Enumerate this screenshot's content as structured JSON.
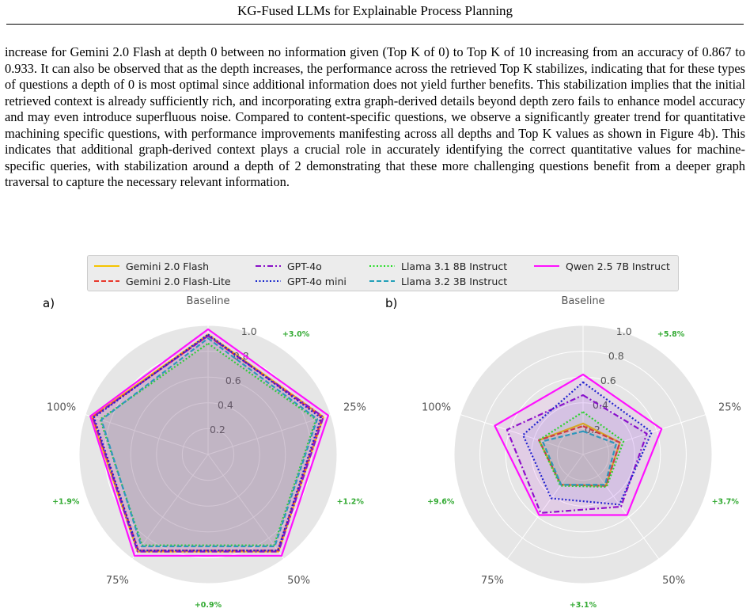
{
  "header": {
    "title": "KG-Fused LLMs for Explainable Process Planning"
  },
  "paragraph": "increase for Gemini 2.0 Flash at depth 0 between no information given (Top K of 0) to Top K of 10 increasing from an accuracy of 0.867 to 0.933. It can also be observed that as the depth increases, the performance across the retrieved Top K stabilizes, indicating that for these types of questions a depth of 0 is most optimal since additional information does not yield further benefits. This stabilization implies that the initial retrieved context is already sufficiently rich, and incorporating extra graph-derived details beyond depth zero fails to enhance model accuracy and may even introduce superfluous noise. Compared to content-specific questions, we observe a significantly greater trend for quantitative machining specific questions, with performance improvements manifesting across all depths and Top K values as shown in Figure 4b). This indicates that additional graph-derived context plays a crucial role in accurately identifying the correct quantitative values for machine-specific queries, with stabilization around a depth of 2 demonstrating that these more challenging questions benefit from a deeper graph traversal to capture the necessary relevant information.",
  "legend": {
    "items": [
      {
        "label": "Gemini 2.0 Flash",
        "color": "#f5c400",
        "dash": "solid"
      },
      {
        "label": "Gemini 2.0 Flash-Lite",
        "color": "#e8382c",
        "dash": "dashed"
      },
      {
        "label": "GPT-4o",
        "color": "#8a10c8",
        "dash": "dashdot"
      },
      {
        "label": "GPT-4o mini",
        "color": "#1424cc",
        "dash": "dotted"
      },
      {
        "label": "Llama 3.1 8B Instruct",
        "color": "#22dd22",
        "dash": "dotted"
      },
      {
        "label": "Llama 3.2 3B Instruct",
        "color": "#22a0b8",
        "dash": "dashed"
      },
      {
        "label": "Qwen 2.5 7B Instruct",
        "color": "#ff10ff",
        "dash": "solid"
      }
    ]
  },
  "chart_data": [
    {
      "type": "radar",
      "panel_label": "a)",
      "axes": [
        "Baseline",
        "25%",
        "50%",
        "75%",
        "100%"
      ],
      "rlim": [
        0,
        1.0
      ],
      "rticks": [
        "0.2",
        "0.4",
        "0.6",
        "0.8",
        "1.0"
      ],
      "improvement_labels": [
        "+3.0%",
        "+1.2%",
        "+0.9%",
        "+1.9%"
      ],
      "improvement_color": "#33aa33",
      "series": [
        {
          "name": "Gemini 2.0 Flash",
          "values": [
            0.93,
            0.94,
            0.93,
            0.93,
            0.95
          ]
        },
        {
          "name": "Gemini 2.0 Flash-Lite",
          "values": [
            0.92,
            0.93,
            0.92,
            0.92,
            0.94
          ]
        },
        {
          "name": "GPT-4o",
          "values": [
            0.92,
            0.94,
            0.93,
            0.93,
            0.94
          ]
        },
        {
          "name": "GPT-4o mini",
          "values": [
            0.93,
            0.92,
            0.92,
            0.92,
            0.93
          ]
        },
        {
          "name": "Llama 3.1 8B Instruct",
          "values": [
            0.86,
            0.88,
            0.87,
            0.87,
            0.88
          ]
        },
        {
          "name": "Llama 3.2 3B Instruct",
          "values": [
            0.9,
            0.89,
            0.88,
            0.88,
            0.87
          ]
        },
        {
          "name": "Qwen 2.5 7B Instruct",
          "values": [
            0.97,
            0.98,
            0.97,
            0.97,
            0.96
          ]
        }
      ]
    },
    {
      "type": "radar",
      "panel_label": "b)",
      "axes": [
        "Baseline",
        "25%",
        "50%",
        "75%",
        "100%"
      ],
      "rlim": [
        0,
        1.0
      ],
      "rticks": [
        "0.2",
        "0.4",
        "0.6",
        "0.8",
        "1.0"
      ],
      "improvement_labels": [
        "+5.8%",
        "+3.7%",
        "+3.1%",
        "+9.6%"
      ],
      "improvement_color": "#33aa33",
      "series": [
        {
          "name": "Gemini 2.0 Flash",
          "values": [
            0.24,
            0.3,
            0.3,
            0.29,
            0.36
          ]
        },
        {
          "name": "Gemini 2.0 Flash-Lite",
          "values": [
            0.22,
            0.3,
            0.3,
            0.29,
            0.36
          ]
        },
        {
          "name": "GPT-4o",
          "values": [
            0.46,
            0.52,
            0.5,
            0.56,
            0.62
          ]
        },
        {
          "name": "GPT-4o mini",
          "values": [
            0.56,
            0.56,
            0.48,
            0.42,
            0.49
          ]
        },
        {
          "name": "Llama 3.1 8B Instruct",
          "values": [
            0.33,
            0.33,
            0.31,
            0.3,
            0.36
          ]
        },
        {
          "name": "Llama 3.2 3B Instruct",
          "values": [
            0.18,
            0.27,
            0.29,
            0.29,
            0.33
          ]
        },
        {
          "name": "Qwen 2.5 7B Instruct",
          "values": [
            0.62,
            0.64,
            0.58,
            0.58,
            0.72
          ]
        }
      ]
    }
  ]
}
